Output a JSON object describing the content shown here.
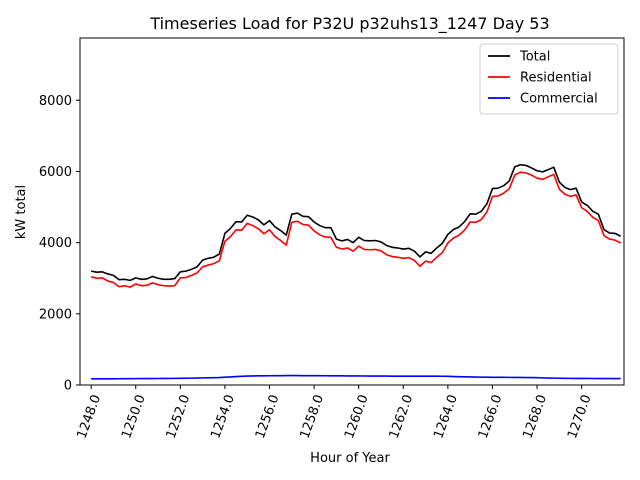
{
  "chart_data": {
    "type": "line",
    "title": "Timeseries Load for P32U p32uhs13_1247  Day 53",
    "xlabel": "Hour of Year",
    "ylabel": "kW total",
    "xlim": [
      1247.5,
      1271.9
    ],
    "ylim": [
      0,
      9750
    ],
    "x_ticks": [
      1248,
      1250,
      1252,
      1254,
      1256,
      1258,
      1260,
      1262,
      1264,
      1266,
      1268,
      1270
    ],
    "x_tick_labels": [
      "1248.0",
      "1250.0",
      "1252.0",
      "1254.0",
      "1256.0",
      "1258.0",
      "1260.0",
      "1262.0",
      "1264.0",
      "1266.0",
      "1268.0",
      "1270.0"
    ],
    "y_ticks": [
      0,
      2000,
      4000,
      6000,
      8000
    ],
    "y_tick_labels": [
      "0",
      "2000",
      "4000",
      "6000",
      "8000"
    ],
    "x": [
      1248.0,
      1248.25,
      1248.5,
      1248.75,
      1249.0,
      1249.25,
      1249.5,
      1249.75,
      1250.0,
      1250.25,
      1250.5,
      1250.75,
      1251.0,
      1251.25,
      1251.5,
      1251.75,
      1252.0,
      1252.25,
      1252.5,
      1252.75,
      1253.0,
      1253.25,
      1253.5,
      1253.75,
      1254.0,
      1254.25,
      1254.5,
      1254.75,
      1255.0,
      1255.25,
      1255.5,
      1255.75,
      1256.0,
      1256.25,
      1256.5,
      1256.75,
      1257.0,
      1257.25,
      1257.5,
      1257.75,
      1258.0,
      1258.25,
      1258.5,
      1258.75,
      1259.0,
      1259.25,
      1259.5,
      1259.75,
      1260.0,
      1260.25,
      1260.5,
      1260.75,
      1261.0,
      1261.25,
      1261.5,
      1261.75,
      1262.0,
      1262.25,
      1262.5,
      1262.75,
      1263.0,
      1263.25,
      1263.5,
      1263.75,
      1264.0,
      1264.25,
      1264.5,
      1264.75,
      1265.0,
      1265.25,
      1265.5,
      1265.75,
      1266.0,
      1266.25,
      1266.5,
      1266.75,
      1267.0,
      1267.25,
      1267.5,
      1267.75,
      1268.0,
      1268.25,
      1268.5,
      1268.75,
      1269.0,
      1269.25,
      1269.5,
      1269.75,
      1270.0,
      1270.25,
      1270.5,
      1270.75,
      1271.0,
      1271.25,
      1271.5,
      1271.75
    ],
    "series": [
      {
        "name": "Total",
        "color": "#000000",
        "values": [
          3200,
          3170,
          3180,
          3120,
          3080,
          2960,
          2970,
          2940,
          3010,
          2970,
          2980,
          3050,
          3000,
          2970,
          2970,
          2990,
          3180,
          3200,
          3250,
          3320,
          3510,
          3560,
          3590,
          3680,
          4260,
          4400,
          4590,
          4580,
          4770,
          4720,
          4640,
          4500,
          4620,
          4440,
          4340,
          4210,
          4800,
          4830,
          4740,
          4730,
          4580,
          4480,
          4420,
          4420,
          4100,
          4050,
          4090,
          4000,
          4150,
          4060,
          4050,
          4060,
          4020,
          3920,
          3870,
          3850,
          3820,
          3840,
          3760,
          3600,
          3740,
          3700,
          3850,
          3980,
          4230,
          4370,
          4440,
          4590,
          4810,
          4800,
          4880,
          5090,
          5520,
          5530,
          5600,
          5730,
          6130,
          6190,
          6170,
          6100,
          6020,
          5990,
          6050,
          6120,
          5700,
          5550,
          5490,
          5530,
          5140,
          5050,
          4880,
          4800,
          4370,
          4270,
          4260,
          4180
        ]
      },
      {
        "name": "Residential",
        "color": "#ff0000",
        "values": [
          3040,
          3000,
          3010,
          2920,
          2880,
          2760,
          2790,
          2750,
          2840,
          2790,
          2800,
          2870,
          2820,
          2790,
          2780,
          2790,
          3010,
          3020,
          3080,
          3150,
          3320,
          3370,
          3410,
          3490,
          4040,
          4170,
          4360,
          4350,
          4540,
          4480,
          4390,
          4250,
          4360,
          4170,
          4060,
          3930,
          4570,
          4600,
          4510,
          4490,
          4330,
          4220,
          4160,
          4150,
          3870,
          3820,
          3850,
          3760,
          3900,
          3810,
          3800,
          3810,
          3770,
          3660,
          3610,
          3590,
          3560,
          3580,
          3500,
          3340,
          3480,
          3440,
          3590,
          3720,
          3990,
          4130,
          4210,
          4350,
          4580,
          4570,
          4650,
          4860,
          5300,
          5310,
          5390,
          5510,
          5900,
          5980,
          5960,
          5900,
          5810,
          5780,
          5850,
          5920,
          5500,
          5360,
          5300,
          5340,
          4980,
          4880,
          4710,
          4620,
          4200,
          4100,
          4070,
          3990
        ]
      },
      {
        "name": "Commercial",
        "color": "#0000ff",
        "values": [
          175,
          175,
          175,
          175,
          175,
          176,
          177,
          178,
          179,
          180,
          181,
          182,
          183,
          184,
          185,
          186,
          188,
          190,
          193,
          196,
          200,
          203,
          206,
          210,
          220,
          228,
          236,
          243,
          250,
          254,
          257,
          259,
          260,
          262,
          263,
          264,
          264,
          264,
          263,
          263,
          262,
          261,
          260,
          259,
          258,
          257,
          256,
          255,
          254,
          253,
          252,
          251,
          250,
          250,
          249,
          249,
          248,
          248,
          248,
          248,
          248,
          247,
          247,
          246,
          243,
          238,
          234,
          230,
          226,
          223,
          221,
          219,
          217,
          216,
          215,
          214,
          213,
          212,
          210,
          208,
          205,
          200,
          196,
          193,
          190,
          188,
          186,
          185,
          185,
          184,
          183,
          182,
          181,
          180,
          180,
          180
        ]
      }
    ],
    "legend": {
      "position": "top-right",
      "entries": [
        "Total",
        "Residential",
        "Commercial"
      ]
    },
    "grid": false
  }
}
